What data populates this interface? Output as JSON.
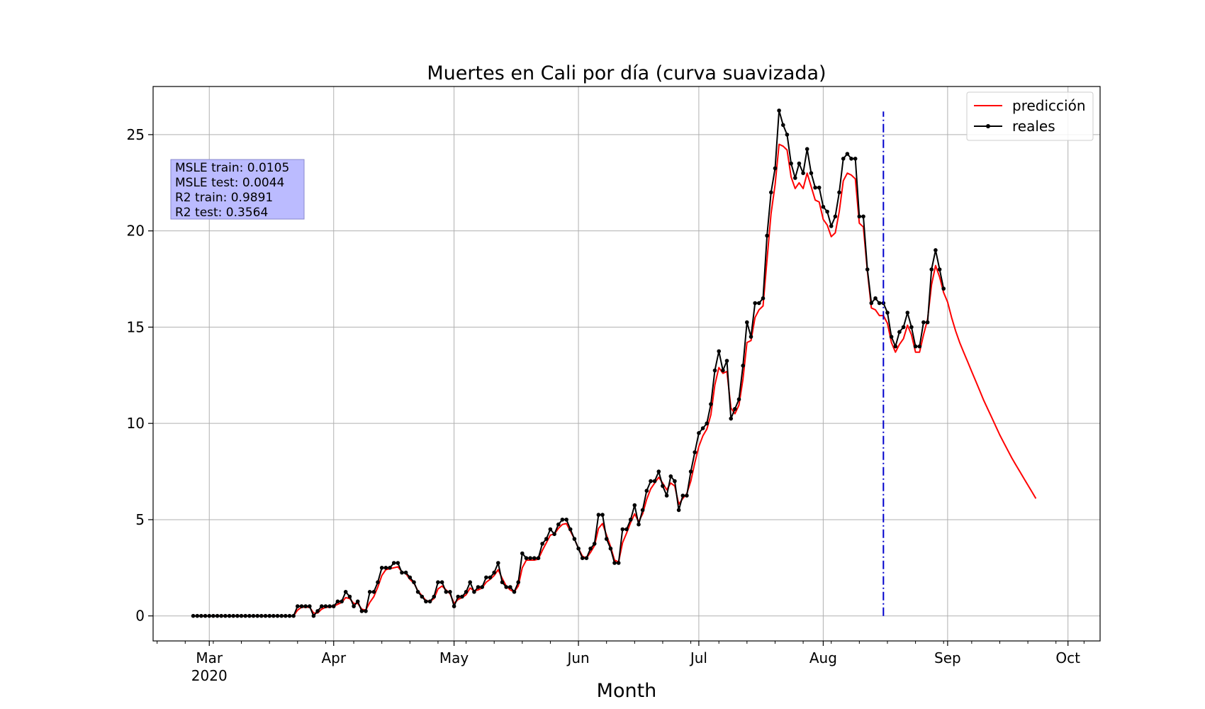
{
  "chart_data": {
    "type": "line",
    "title": "Muertes en Cali por día (curva suavizada)",
    "xlabel": "Month",
    "ylabel": "",
    "x_axis": {
      "type": "date",
      "range": [
        "2020-02-16",
        "2020-10-09"
      ],
      "ticks": [
        {
          "date": "2020-03-01",
          "label": "Mar",
          "sublabel": "2020"
        },
        {
          "date": "2020-04-01",
          "label": "Apr"
        },
        {
          "date": "2020-05-01",
          "label": "May"
        },
        {
          "date": "2020-06-01",
          "label": "Jun"
        },
        {
          "date": "2020-07-01",
          "label": "Jul"
        },
        {
          "date": "2020-08-01",
          "label": "Aug"
        },
        {
          "date": "2020-09-01",
          "label": "Sep"
        },
        {
          "date": "2020-10-01",
          "label": "Oct"
        }
      ]
    },
    "y_axis": {
      "range": [
        -1.3,
        27.5
      ],
      "ticks": [
        0,
        5,
        10,
        15,
        20,
        25
      ]
    },
    "grid": true,
    "legend": {
      "position": "top-right",
      "entries": [
        "predicción",
        "reales"
      ]
    },
    "annotation": {
      "lines": [
        "MSLE train: 0.0105",
        "MSLE test: 0.0044",
        "R2 train: 0.9891",
        "R2 test: 0.3564"
      ],
      "box_color": "#bbbbff"
    },
    "split_line": {
      "date": "2020-08-16",
      "color": "#0000cc",
      "style": "dash-dot",
      "y_range": [
        0,
        26.2
      ]
    },
    "colors": {
      "predicted": "#ff0000",
      "actual": "#000000"
    },
    "series": [
      {
        "name": "reales",
        "start_date": "2020-02-26",
        "values": [
          0,
          0,
          0,
          0,
          0,
          0,
          0,
          0,
          0,
          0,
          0,
          0,
          0,
          0,
          0,
          0,
          0,
          0,
          0,
          0,
          0,
          0,
          0,
          0,
          0,
          0,
          0.5,
          0.5,
          0.5,
          0.5,
          0,
          0.25,
          0.5,
          0.5,
          0.5,
          0.5,
          0.75,
          0.75,
          1.25,
          1,
          0.5,
          0.75,
          0.25,
          0.25,
          1.25,
          1.25,
          1.75,
          2.5,
          2.5,
          2.5,
          2.75,
          2.75,
          2.25,
          2.25,
          2,
          1.75,
          1.25,
          1,
          0.75,
          0.75,
          1,
          1.75,
          1.75,
          1.25,
          1.25,
          0.5,
          1,
          1,
          1.25,
          1.75,
          1.25,
          1.5,
          1.5,
          2,
          2,
          2.25,
          2.75,
          1.75,
          1.5,
          1.5,
          1.25,
          1.75,
          3.25,
          3,
          3,
          3,
          3,
          3.75,
          4,
          4.5,
          4.25,
          4.75,
          5,
          5,
          4.5,
          4,
          3.5,
          3,
          3,
          3.5,
          3.75,
          5.25,
          5.25,
          4,
          3.5,
          2.75,
          2.75,
          4.5,
          4.5,
          5,
          5.75,
          4.75,
          5.5,
          6.5,
          7,
          7,
          7.5,
          6.75,
          6.25,
          7.25,
          7,
          5.5,
          6.25,
          6.25,
          7.5,
          8.5,
          9.5,
          9.75,
          10,
          11,
          12.75,
          13.75,
          12.75,
          13.25,
          10.25,
          10.75,
          11.25,
          13,
          15.25,
          14.5,
          16.25,
          16.25,
          16.5,
          19.75,
          22,
          23.25,
          26.25,
          25.5,
          25,
          23.5,
          22.75,
          23.5,
          23,
          24.25,
          23,
          22.25,
          22.25,
          21.25,
          21,
          20.25,
          20.75,
          22,
          23.75,
          24,
          23.75,
          23.75,
          20.75,
          20.75,
          18,
          16.25,
          16.5,
          16.25,
          16.25,
          15.75,
          14.5,
          14,
          14.75,
          15,
          15.75,
          15,
          14,
          14,
          15.25,
          15.25,
          18,
          19,
          18,
          17
        ]
      },
      {
        "name": "predicción",
        "start_date": "2020-02-26",
        "values": [
          0,
          0,
          0,
          0,
          0,
          0,
          0,
          0,
          0,
          0,
          0,
          0,
          0,
          0,
          0,
          0,
          0,
          0,
          0,
          0,
          0,
          0,
          0,
          0,
          0,
          0,
          0.3,
          0.45,
          0.45,
          0.45,
          0.15,
          0.15,
          0.35,
          0.45,
          0.45,
          0.5,
          0.6,
          0.7,
          0.95,
          0.9,
          0.65,
          0.65,
          0.35,
          0.3,
          0.7,
          1.0,
          1.5,
          2.1,
          2.4,
          2.45,
          2.5,
          2.55,
          2.3,
          2.2,
          1.9,
          1.7,
          1.3,
          1.05,
          0.8,
          0.75,
          0.9,
          1.4,
          1.55,
          1.35,
          1.15,
          0.65,
          0.85,
          0.95,
          1.1,
          1.45,
          1.3,
          1.35,
          1.45,
          1.75,
          1.9,
          2.1,
          2.4,
          1.95,
          1.55,
          1.35,
          1.25,
          1.55,
          2.5,
          2.9,
          2.9,
          2.9,
          2.95,
          3.4,
          3.8,
          4.2,
          4.25,
          4.55,
          4.75,
          4.8,
          4.4,
          4.0,
          3.5,
          3.1,
          3.0,
          3.3,
          3.65,
          4.55,
          4.8,
          4.2,
          3.6,
          2.9,
          2.8,
          3.8,
          4.3,
          4.85,
          5.3,
          4.9,
          5.3,
          6.05,
          6.6,
          6.9,
          7.2,
          6.9,
          6.55,
          6.9,
          6.75,
          5.8,
          6.1,
          6.35,
          7.0,
          7.95,
          8.8,
          9.35,
          9.7,
          10.45,
          12.0,
          12.9,
          12.6,
          12.7,
          10.8,
          10.5,
          10.95,
          12.3,
          14.2,
          14.3,
          15.5,
          15.9,
          16.1,
          18.5,
          20.9,
          22.4,
          24.5,
          24.4,
          24.2,
          22.8,
          22.2,
          22.5,
          22.2,
          23.0,
          22.3,
          21.6,
          21.5,
          20.6,
          20.3,
          19.7,
          19.9,
          21.0,
          22.6,
          23.0,
          22.9,
          22.7,
          20.4,
          20.2,
          17.9,
          16.0,
          15.9,
          15.6,
          15.6,
          15.2,
          14.2,
          13.7,
          14.1,
          14.4,
          15.1,
          14.6,
          13.7,
          13.7,
          14.6,
          15.4,
          17.2,
          18.2,
          17.6,
          16.8,
          16.3,
          15.5,
          14.8,
          14.2,
          13.7,
          13.2,
          12.7,
          12.2,
          11.7,
          11.2,
          10.75,
          10.3,
          9.85,
          9.4,
          9.0,
          8.6,
          8.2,
          7.85,
          7.5,
          7.15,
          6.8,
          6.45,
          6.1
        ]
      }
    ]
  }
}
